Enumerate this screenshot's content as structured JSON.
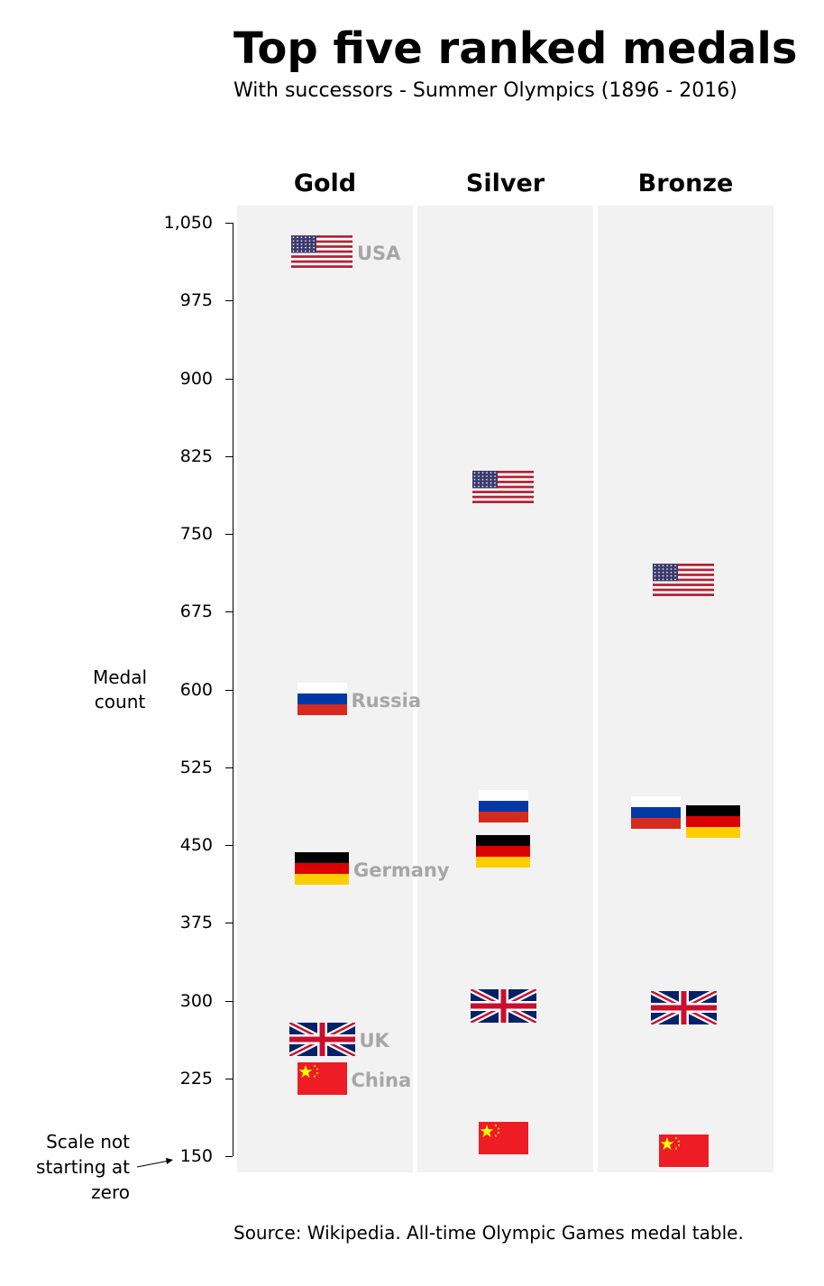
{
  "title": "Top five ranked medals",
  "subtitle": "With successors - Summer Olympics (1896 - 2016)",
  "source": "Source: Wikipedia. All-time Olympic Games medal table.",
  "axis_note": "Scale not starting at zero",
  "chart_data": {
    "type": "scatter",
    "title": "Top five ranked medals",
    "subtitle": "With successors - Summer Olympics (1896 - 2016)",
    "ylabel": "Medal count",
    "ylim": [
      150,
      1050
    ],
    "yticks": [
      "1,050",
      "975",
      "900",
      "825",
      "750",
      "675",
      "600",
      "525",
      "450",
      "375",
      "300",
      "225",
      "150"
    ],
    "categories": [
      "Gold",
      "Silver",
      "Bronze"
    ],
    "grid": false,
    "series": [
      {
        "name": "USA",
        "values": [
          1022,
          795,
          706
        ],
        "flag_colors": [
          "#b22234",
          "#ffffff",
          "#3c3b6e"
        ]
      },
      {
        "name": "Russia",
        "values": [
          591,
          487,
          481
        ],
        "flag_colors": [
          "#ffffff",
          "#0039a6",
          "#d52b1e"
        ]
      },
      {
        "name": "Germany",
        "values": [
          427,
          444,
          473
        ],
        "flag_colors": [
          "#000000",
          "#dd0000",
          "#ffce00"
        ]
      },
      {
        "name": "UK",
        "values": [
          263,
          295,
          293
        ],
        "flag_colors": [
          "#012169",
          "#ffffff",
          "#c8102e"
        ]
      },
      {
        "name": "China",
        "values": [
          225,
          167,
          155
        ],
        "flag_colors": [
          "#ee1c25",
          "#ffff00"
        ]
      }
    ],
    "panel_color": "#f2f2f2",
    "label_color": "#a6a6a6"
  }
}
